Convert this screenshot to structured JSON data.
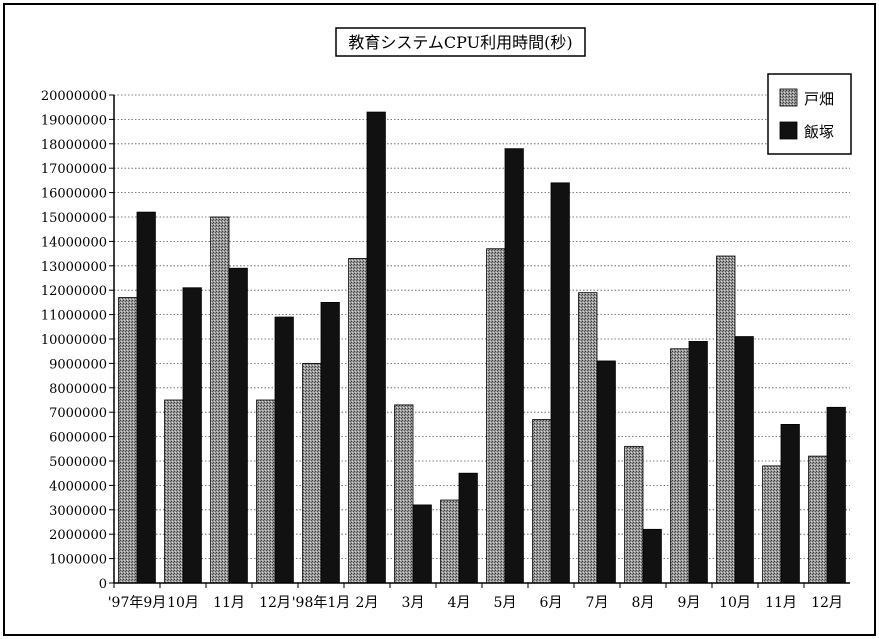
{
  "chart_data": {
    "type": "bar",
    "title": "教育システムCPU利用時間(秒)",
    "categories": [
      "'97年9月",
      "10月",
      "11月",
      "12月",
      "'98年1月",
      "2月",
      "3月",
      "4月",
      "5月",
      "6月",
      "7月",
      "8月",
      "9月",
      "10月",
      "11月",
      "12月"
    ],
    "series": [
      {
        "name": "戸畑",
        "color": "#8a8a8a",
        "pattern": "stipple",
        "values": [
          11700000,
          7500000,
          15000000,
          7500000,
          9000000,
          13300000,
          7300000,
          3400000,
          13700000,
          6700000,
          11900000,
          5600000,
          9600000,
          13400000,
          4800000,
          5200000
        ]
      },
      {
        "name": "飯塚",
        "color": "#111111",
        "pattern": "solid",
        "values": [
          15200000,
          12100000,
          12900000,
          10900000,
          11500000,
          19300000,
          3200000,
          4500000,
          17800000,
          16400000,
          9100000,
          2200000,
          9900000,
          10100000,
          6500000,
          7200000
        ]
      }
    ],
    "yticks": [
      0,
      1000000,
      2000000,
      3000000,
      4000000,
      5000000,
      6000000,
      7000000,
      8000000,
      9000000,
      10000000,
      11000000,
      12000000,
      13000000,
      14000000,
      15000000,
      16000000,
      17000000,
      18000000,
      19000000,
      20000000
    ],
    "ylim": [
      0,
      20000000
    ],
    "xlabel": "",
    "ylabel": "",
    "grid": "horizontal-dotted",
    "legend_position": "top-right"
  }
}
